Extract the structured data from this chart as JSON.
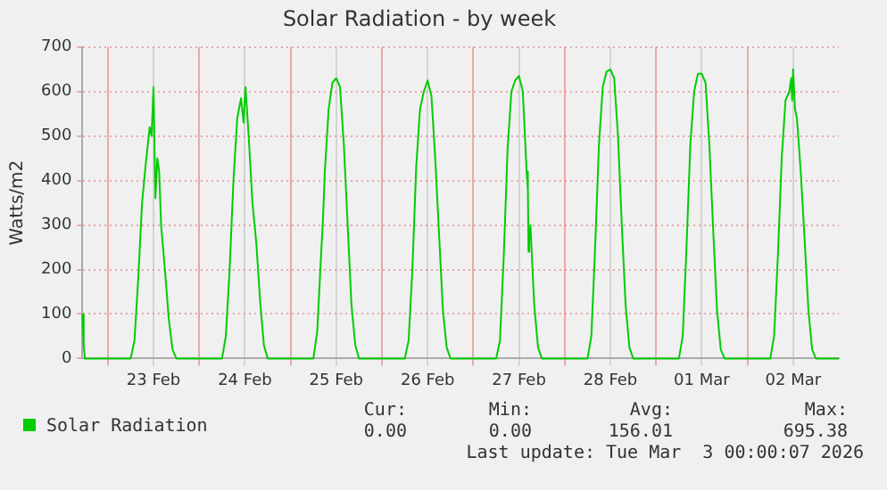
{
  "chart_data": {
    "type": "line",
    "title": "Solar Radiation - by week",
    "ylabel": "Watts/m2",
    "xlim": [
      "2026-02-22T17:20",
      "2026-03-03T00:00"
    ],
    "xticks": [
      {
        "value": "2026-02-23T00:00",
        "label": null
      },
      {
        "value": "2026-02-23T12:00",
        "label": "23 Feb"
      },
      {
        "value": "2026-02-24T00:00",
        "label": null
      },
      {
        "value": "2026-02-24T12:00",
        "label": "24 Feb"
      },
      {
        "value": "2026-02-25T00:00",
        "label": null
      },
      {
        "value": "2026-02-25T12:00",
        "label": "25 Feb"
      },
      {
        "value": "2026-02-26T00:00",
        "label": null
      },
      {
        "value": "2026-02-26T12:00",
        "label": "26 Feb"
      },
      {
        "value": "2026-02-27T00:00",
        "label": null
      },
      {
        "value": "2026-02-27T12:00",
        "label": "27 Feb"
      },
      {
        "value": "2026-02-28T00:00",
        "label": null
      },
      {
        "value": "2026-02-28T12:00",
        "label": "28 Feb"
      },
      {
        "value": "2026-03-01T00:00",
        "label": null
      },
      {
        "value": "2026-03-01T12:00",
        "label": "01 Mar"
      },
      {
        "value": "2026-03-02T00:00",
        "label": null
      },
      {
        "value": "2026-03-02T12:00",
        "label": "02 Mar"
      }
    ],
    "ylim": [
      0,
      700
    ],
    "yticks": [
      0,
      100,
      200,
      300,
      400,
      500,
      600,
      700
    ],
    "grid": true,
    "legend": "bottom left",
    "marker": "none",
    "series": [
      {
        "name": "Solar Radiation",
        "color": "#00cc00",
        "x": [
          "2026-02-22T17:20",
          "2026-02-22T17:40",
          "2026-02-22T18:00",
          "2026-02-23T06:00",
          "2026-02-23T07:00",
          "2026-02-23T08:00",
          "2026-02-23T09:00",
          "2026-02-23T10:00",
          "2026-02-23T11:00",
          "2026-02-23T11:30",
          "2026-02-23T12:00",
          "2026-02-23T12:30",
          "2026-02-23T13:00",
          "2026-02-23T13:30",
          "2026-02-23T14:00",
          "2026-02-23T15:00",
          "2026-02-23T16:00",
          "2026-02-23T17:00",
          "2026-02-23T18:00",
          "2026-02-24T06:00",
          "2026-02-24T07:00",
          "2026-02-24T08:00",
          "2026-02-24T09:00",
          "2026-02-24T10:00",
          "2026-02-24T11:00",
          "2026-02-24T11:40",
          "2026-02-24T12:10",
          "2026-02-24T13:00",
          "2026-02-24T14:00",
          "2026-02-24T15:00",
          "2026-02-24T16:00",
          "2026-02-24T17:00",
          "2026-02-24T18:00",
          "2026-02-25T06:00",
          "2026-02-25T07:00",
          "2026-02-25T08:00",
          "2026-02-25T08:30",
          "2026-02-25T09:00",
          "2026-02-25T10:00",
          "2026-02-25T11:00",
          "2026-02-25T12:00",
          "2026-02-25T13:00",
          "2026-02-25T14:00",
          "2026-02-25T15:00",
          "2026-02-25T16:00",
          "2026-02-25T17:00",
          "2026-02-25T18:00",
          "2026-02-26T06:00",
          "2026-02-26T07:00",
          "2026-02-26T08:00",
          "2026-02-26T09:00",
          "2026-02-26T10:00",
          "2026-02-26T11:00",
          "2026-02-26T12:00",
          "2026-02-26T13:00",
          "2026-02-26T14:00",
          "2026-02-26T15:00",
          "2026-02-26T16:00",
          "2026-02-26T17:00",
          "2026-02-26T18:00",
          "2026-02-27T06:00",
          "2026-02-27T07:00",
          "2026-02-27T08:00",
          "2026-02-27T09:00",
          "2026-02-27T10:00",
          "2026-02-27T11:00",
          "2026-02-27T12:00",
          "2026-02-27T13:00",
          "2026-02-27T14:00",
          "2026-02-27T14:20",
          "2026-02-27T14:30",
          "2026-02-27T14:40",
          "2026-02-27T15:00",
          "2026-02-27T16:00",
          "2026-02-27T17:00",
          "2026-02-27T18:00",
          "2026-02-28T06:00",
          "2026-02-28T07:00",
          "2026-02-28T08:00",
          "2026-02-28T09:00",
          "2026-02-28T10:00",
          "2026-02-28T11:00",
          "2026-02-28T12:00",
          "2026-02-28T13:00",
          "2026-02-28T14:00",
          "2026-02-28T15:00",
          "2026-02-28T16:00",
          "2026-02-28T17:00",
          "2026-02-28T18:00",
          "2026-03-01T06:00",
          "2026-03-01T07:00",
          "2026-03-01T08:00",
          "2026-03-01T09:00",
          "2026-03-01T10:00",
          "2026-03-01T11:00",
          "2026-03-01T12:00",
          "2026-03-01T13:00",
          "2026-03-01T14:00",
          "2026-03-01T15:00",
          "2026-03-01T16:00",
          "2026-03-01T17:00",
          "2026-03-01T18:00",
          "2026-03-02T06:00",
          "2026-03-02T07:00",
          "2026-03-02T08:00",
          "2026-03-02T09:00",
          "2026-03-02T10:00",
          "2026-03-02T11:00",
          "2026-03-02T11:30",
          "2026-03-02T11:45",
          "2026-03-02T12:00",
          "2026-03-02T12:30",
          "2026-03-02T13:00",
          "2026-03-02T14:00",
          "2026-03-02T15:00",
          "2026-03-02T16:00",
          "2026-03-02T17:00",
          "2026-03-02T18:00",
          "2026-03-03T00:00"
        ],
        "values": [
          100,
          30,
          0,
          0,
          40,
          180,
          350,
          440,
          520,
          500,
          610,
          360,
          450,
          420,
          300,
          200,
          90,
          20,
          0,
          0,
          50,
          200,
          400,
          540,
          585,
          530,
          610,
          500,
          350,
          260,
          130,
          30,
          0,
          0,
          60,
          230,
          310,
          420,
          560,
          620,
          630,
          610,
          480,
          300,
          120,
          30,
          0,
          0,
          40,
          200,
          430,
          560,
          600,
          625,
          590,
          450,
          280,
          110,
          25,
          0,
          0,
          40,
          230,
          470,
          600,
          625,
          635,
          600,
          420,
          380,
          240,
          270,
          300,
          120,
          25,
          0,
          0,
          50,
          250,
          480,
          610,
          645,
          650,
          630,
          500,
          300,
          120,
          25,
          0,
          0,
          50,
          250,
          480,
          600,
          640,
          640,
          620,
          480,
          290,
          110,
          20,
          0,
          0,
          50,
          230,
          450,
          580,
          600,
          630,
          580,
          650,
          560,
          540,
          420,
          270,
          110,
          20,
          0,
          0
        ]
      }
    ],
    "annotations": [
      "Cur:",
      "0.00",
      "Min:",
      "0.00",
      "Avg:",
      "156.01",
      "Max:",
      "695.38",
      "Last update: Tue Mar  3 00:00:07 2026"
    ]
  }
}
